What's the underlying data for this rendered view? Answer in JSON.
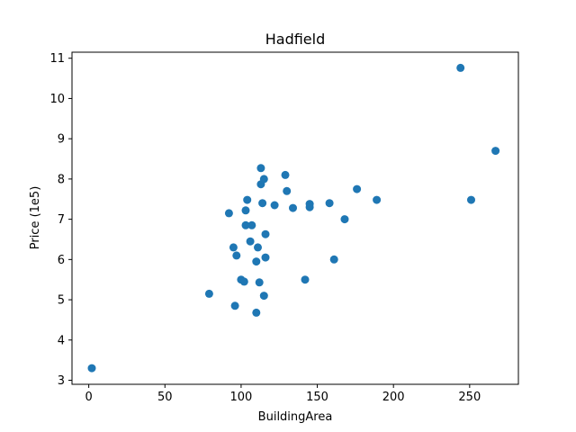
{
  "chart_data": {
    "type": "scatter",
    "title": "Hadfield",
    "xlabel": "BuildingArea",
    "ylabel": "Price (1e5)",
    "xlim": [
      -11,
      282
    ],
    "ylim": [
      2.9,
      11.15
    ],
    "xticks": [
      0,
      50,
      100,
      150,
      200,
      250
    ],
    "yticks": [
      3,
      4,
      5,
      6,
      7,
      8,
      9,
      10,
      11
    ],
    "grid": false,
    "marker_color": "#1f77b4",
    "points": [
      {
        "x": 2,
        "y": 3.3
      },
      {
        "x": 79,
        "y": 5.15
      },
      {
        "x": 92,
        "y": 7.15
      },
      {
        "x": 95,
        "y": 6.3
      },
      {
        "x": 96,
        "y": 4.85
      },
      {
        "x": 97,
        "y": 6.1
      },
      {
        "x": 100,
        "y": 5.5
      },
      {
        "x": 102,
        "y": 5.45
      },
      {
        "x": 103,
        "y": 6.85
      },
      {
        "x": 103,
        "y": 7.22
      },
      {
        "x": 104,
        "y": 7.48
      },
      {
        "x": 106,
        "y": 6.45
      },
      {
        "x": 107,
        "y": 6.85
      },
      {
        "x": 110,
        "y": 4.68
      },
      {
        "x": 110,
        "y": 5.95
      },
      {
        "x": 111,
        "y": 6.3
      },
      {
        "x": 112,
        "y": 5.43
      },
      {
        "x": 113,
        "y": 8.27
      },
      {
        "x": 113,
        "y": 7.87
      },
      {
        "x": 114,
        "y": 7.4
      },
      {
        "x": 115,
        "y": 5.1
      },
      {
        "x": 115,
        "y": 8.0
      },
      {
        "x": 116,
        "y": 6.05
      },
      {
        "x": 116,
        "y": 6.63
      },
      {
        "x": 122,
        "y": 7.35
      },
      {
        "x": 129,
        "y": 8.1
      },
      {
        "x": 130,
        "y": 7.7
      },
      {
        "x": 134,
        "y": 7.28
      },
      {
        "x": 142,
        "y": 5.5
      },
      {
        "x": 145,
        "y": 7.38
      },
      {
        "x": 145,
        "y": 7.3
      },
      {
        "x": 158,
        "y": 7.4
      },
      {
        "x": 161,
        "y": 6.0
      },
      {
        "x": 168,
        "y": 7.0
      },
      {
        "x": 176,
        "y": 7.75
      },
      {
        "x": 189,
        "y": 7.48
      },
      {
        "x": 244,
        "y": 10.76
      },
      {
        "x": 251,
        "y": 7.48
      },
      {
        "x": 267,
        "y": 8.7
      }
    ]
  }
}
